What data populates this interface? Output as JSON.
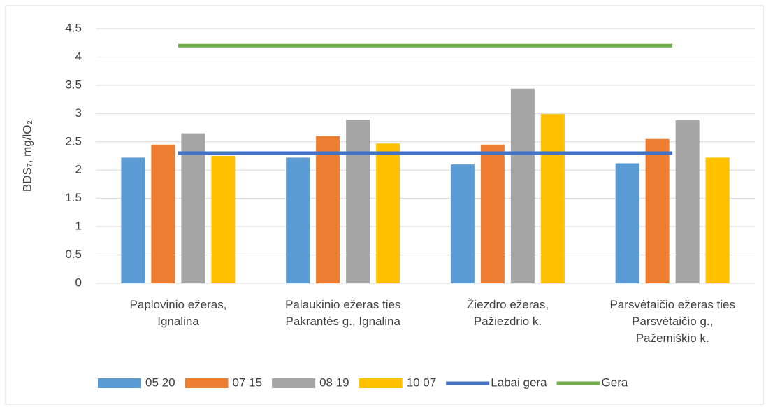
{
  "chart_data": {
    "type": "bar",
    "y_label": "BDS₇, mg/lO₂",
    "categories": [
      "Paplovinio ežeras,\nIgnalina",
      "Palaukinio ežeras ties\nPakrantės g., Ignalina",
      "Žiezdro ežeras,\nPažiezdrio k.",
      "Parsvėtaičio ežeras ties\nParsvėtaičio g.,\nPažemiškio k."
    ],
    "series": [
      {
        "name": "05 20",
        "color": "#5b9bd5",
        "values": [
          2.22,
          2.22,
          2.1,
          2.12
        ]
      },
      {
        "name": "07 15",
        "color": "#ed7d31",
        "values": [
          2.45,
          2.6,
          2.45,
          2.55
        ]
      },
      {
        "name": "08 19",
        "color": "#a5a5a5",
        "values": [
          2.65,
          2.89,
          3.44,
          2.88
        ]
      },
      {
        "name": "10 07",
        "color": "#ffc000",
        "values": [
          2.25,
          2.47,
          2.99,
          2.22
        ]
      },
      {
        "name": "Labai gera",
        "color": "#4472c4",
        "type": "line",
        "values": [
          2.3,
          2.3,
          2.3,
          2.3
        ]
      },
      {
        "name": "Gera",
        "color": "#70ad47",
        "type": "line",
        "values": [
          4.2,
          4.2,
          4.2,
          4.2
        ]
      }
    ],
    "ylim": [
      0,
      4.5
    ],
    "yticks": [
      0,
      0.5,
      1,
      1.5,
      2,
      2.5,
      3,
      3.5,
      4,
      4.5
    ],
    "grid": true,
    "legend": "bottom"
  }
}
